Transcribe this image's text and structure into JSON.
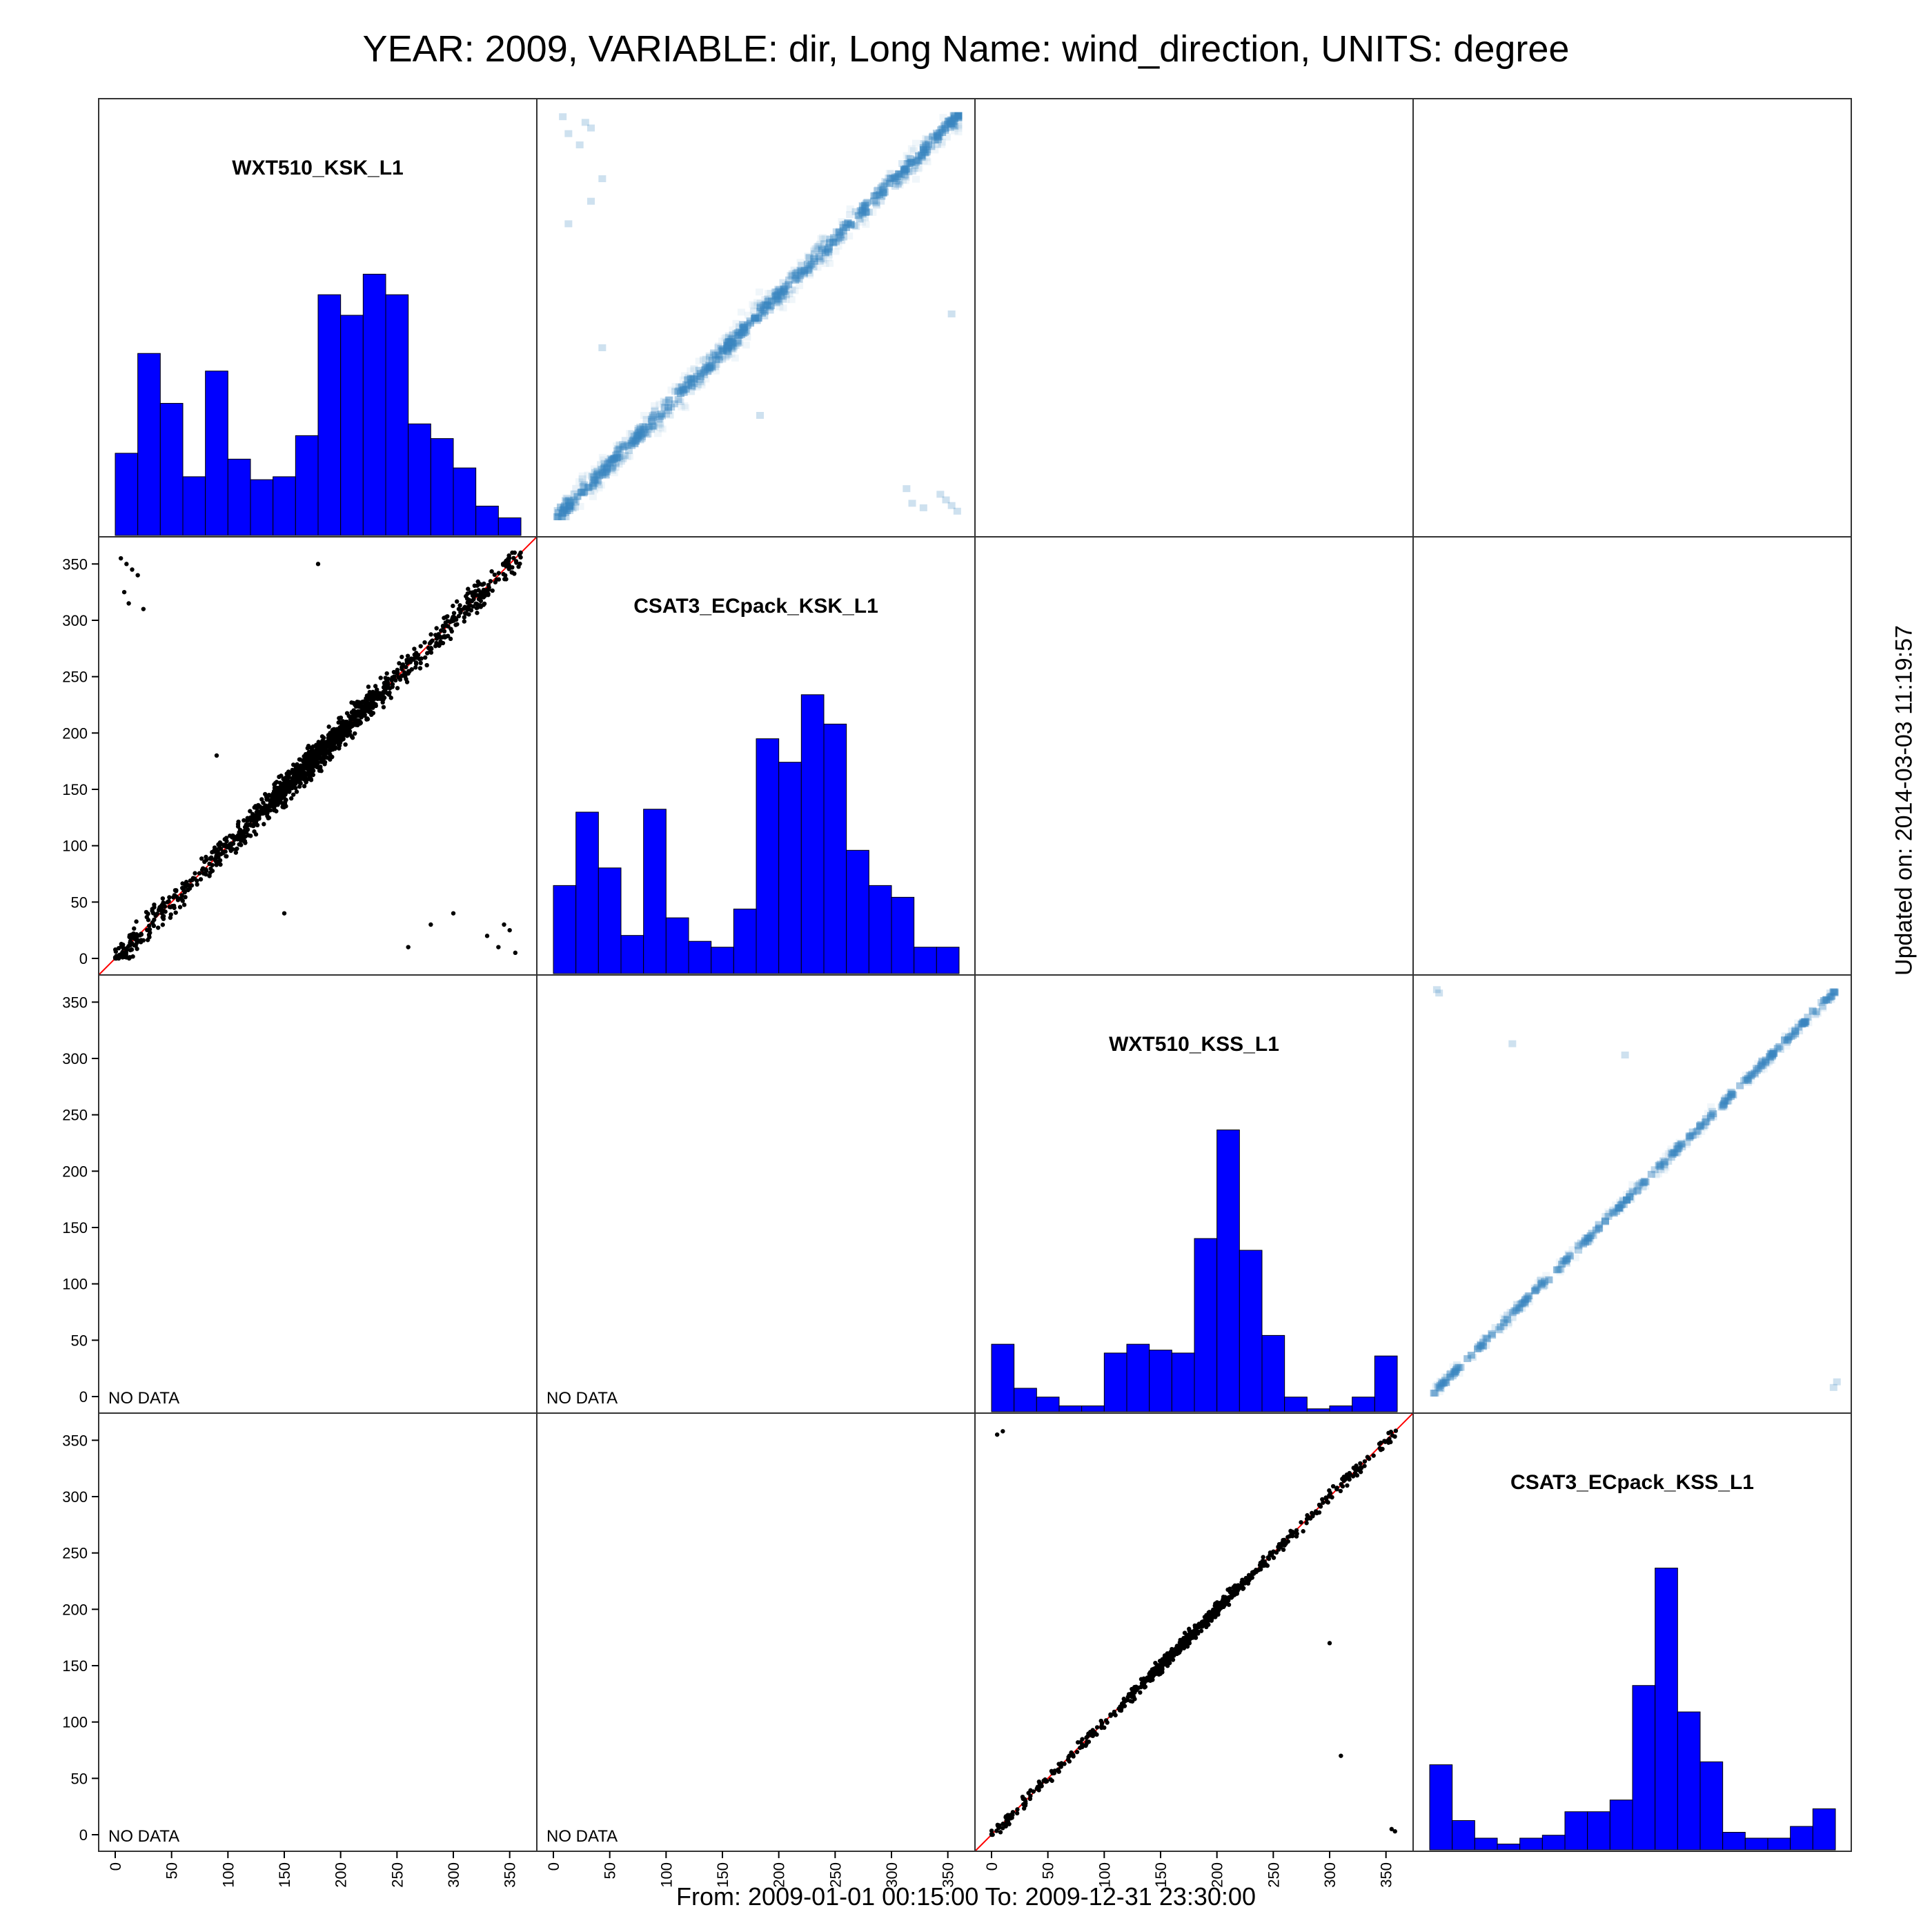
{
  "title": "YEAR: 2009, VARIABLE: dir, Long Name: wind_direction, UNITS: degree",
  "footer": "From: 2009-01-01 00:15:00 To: 2009-12-31 23:30:00",
  "updated": "Updated on: 2014-03-03 11:19:57",
  "no_data_label": "NO DATA",
  "colors": {
    "hist": "#0000ff",
    "line": "#ff0000",
    "point": "#000000",
    "density": "#3a86c0"
  },
  "chart_data": {
    "type": "scatter",
    "layout": "scatterplot-matrix",
    "axis_range": [
      0,
      360
    ],
    "ticks": [
      0,
      50,
      100,
      150,
      200,
      250,
      300,
      350
    ],
    "variables": [
      "WXT510_KSK_L1",
      "CSAT3_ECpack_KSK_L1",
      "WXT510_KSS_L1",
      "CSAT3_ECpack_KSS_L1"
    ],
    "histograms": [
      {
        "variable": "WXT510_KSK_L1",
        "bin_width": 20,
        "values": [
          0.28,
          0.62,
          0.45,
          0.2,
          0.56,
          0.26,
          0.19,
          0.2,
          0.34,
          0.82,
          0.75,
          0.89,
          0.82,
          0.38,
          0.33,
          0.23,
          0.1,
          0.06
        ]
      },
      {
        "variable": "CSAT3_ECpack_KSK_L1",
        "bin_width": 20,
        "values": [
          0.3,
          0.55,
          0.36,
          0.13,
          0.56,
          0.19,
          0.11,
          0.09,
          0.22,
          0.8,
          0.72,
          0.95,
          0.85,
          0.42,
          0.3,
          0.26,
          0.09,
          0.09
        ]
      },
      {
        "variable": "WXT510_KSS_L1",
        "bin_width": 20,
        "values": [
          0.23,
          0.08,
          0.05,
          0.02,
          0.02,
          0.2,
          0.23,
          0.21,
          0.2,
          0.59,
          0.96,
          0.55,
          0.26,
          0.05,
          0.01,
          0.02,
          0.05,
          0.19
        ]
      },
      {
        "variable": "CSAT3_ECpack_KSS_L1",
        "bin_width": 20,
        "values": [
          0.29,
          0.1,
          0.04,
          0.02,
          0.04,
          0.05,
          0.13,
          0.13,
          0.17,
          0.56,
          0.96,
          0.47,
          0.3,
          0.06,
          0.04,
          0.04,
          0.08,
          0.14
        ]
      }
    ],
    "pairs": [
      {
        "x": "WXT510_KSK_L1",
        "y": "CSAT3_ECpack_KSK_L1",
        "relation": "1:1",
        "reference_line": "y = x",
        "has_data": true
      },
      {
        "x": "WXT510_KSS_L1",
        "y": "CSAT3_ECpack_KSS_L1",
        "relation": "1:1",
        "reference_line": "y = x",
        "has_data": true
      },
      {
        "x": "WXT510_KSK_L1",
        "y": "WXT510_KSS_L1",
        "has_data": false
      },
      {
        "x": "CSAT3_ECpack_KSK_L1",
        "y": "WXT510_KSS_L1",
        "has_data": false
      },
      {
        "x": "WXT510_KSK_L1",
        "y": "CSAT3_ECpack_KSS_L1",
        "has_data": false
      },
      {
        "x": "CSAT3_ECpack_KSK_L1",
        "y": "CSAT3_ECpack_KSS_L1",
        "has_data": false
      }
    ]
  }
}
